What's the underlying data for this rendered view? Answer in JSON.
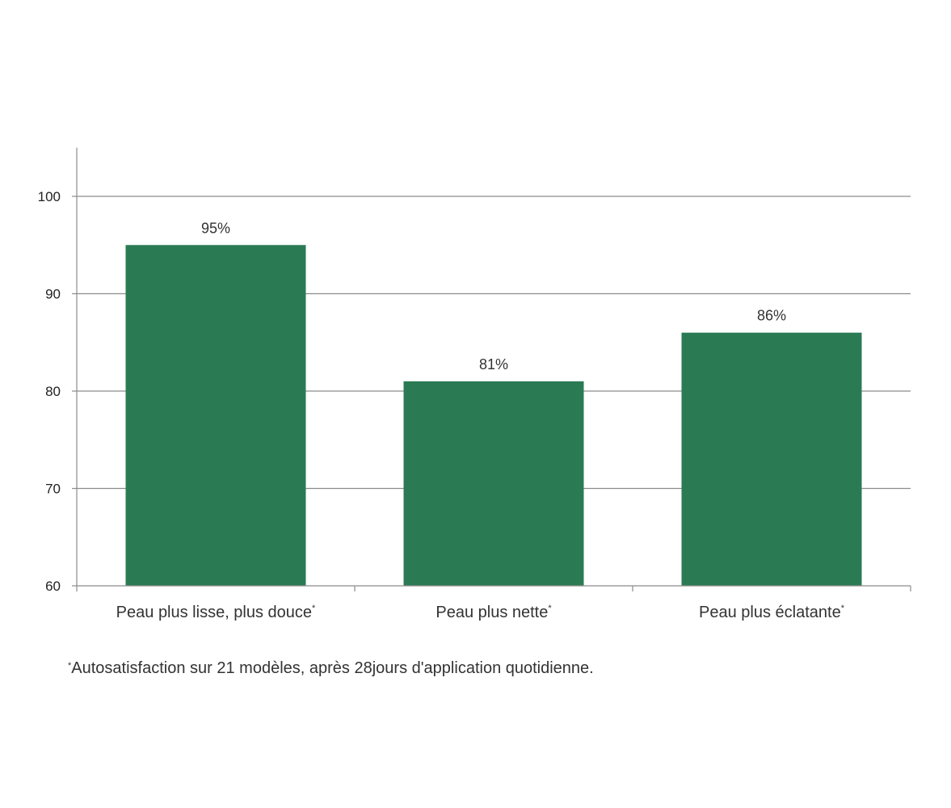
{
  "chart_data": {
    "type": "bar",
    "categories": [
      "Peau plus lisse, plus douce*",
      "Peau plus nette*",
      "Peau plus éclatante*"
    ],
    "values": [
      95,
      81,
      86
    ],
    "data_labels": [
      "95%",
      "81%",
      "86%"
    ],
    "ylim": [
      60,
      105
    ],
    "yticks": [
      60,
      70,
      80,
      90,
      100
    ],
    "grid": true,
    "bar_color": "#2a7b53",
    "title": "",
    "xlabel": "",
    "ylabel": ""
  },
  "footnote": {
    "marker": "*",
    "text": "Autosatisfaction  sur 21 modèles, après 28jours d'application  quotidienne."
  }
}
